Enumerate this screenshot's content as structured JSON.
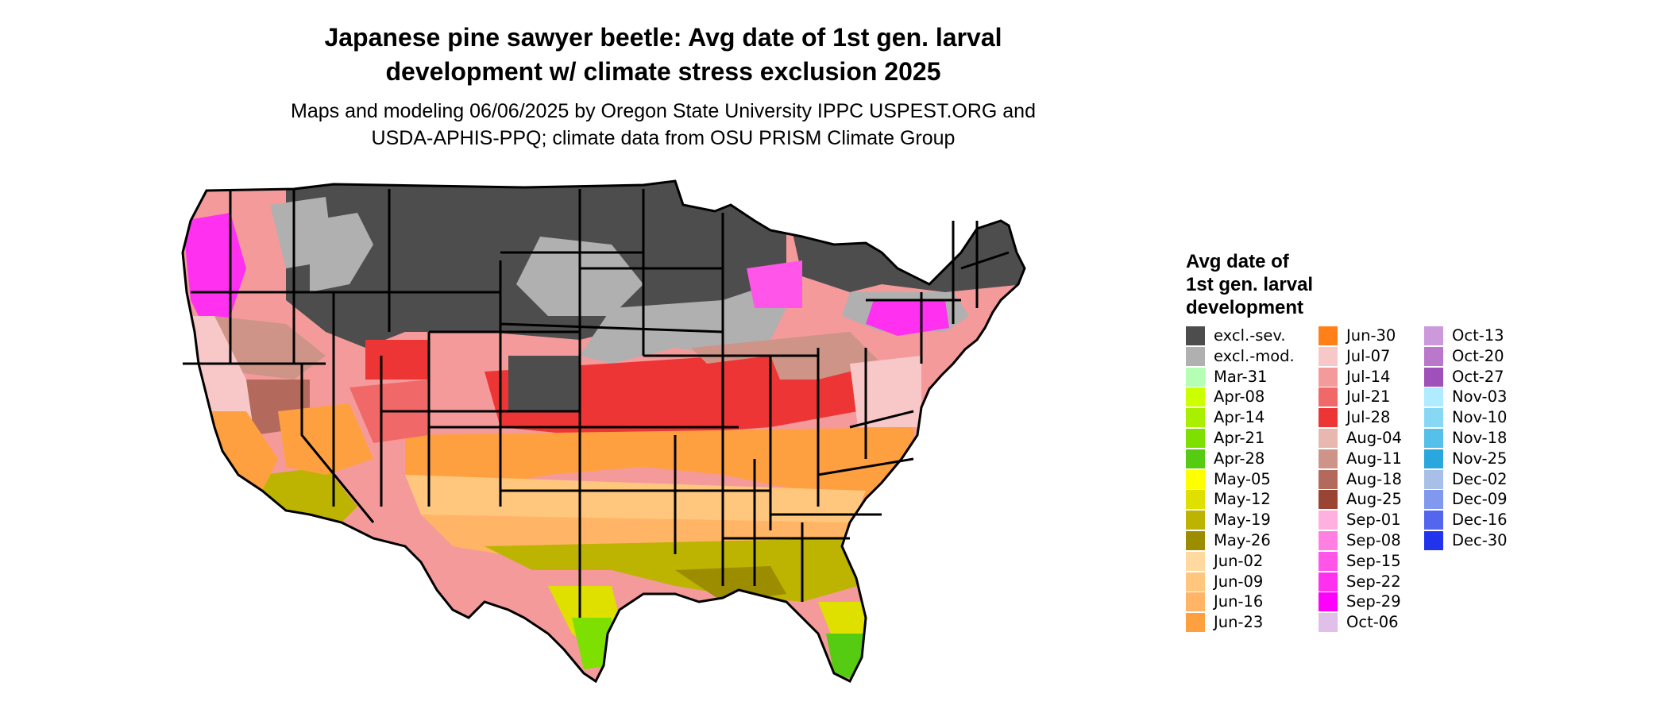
{
  "title_line1": "Japanese pine sawyer beetle: Avg date of 1st gen. larval",
  "title_line2": "development w/ climate stress exclusion 2025",
  "subtitle_line1": "Maps and modeling 06/06/2025 by Oregon State University IPPC USPEST.ORG and",
  "subtitle_line2": "USDA-APHIS-PPQ; climate data from OSU PRISM Climate Group",
  "legend": {
    "title_line1": "Avg date of",
    "title_line2": "1st gen. larval",
    "title_line3": "development",
    "col1": [
      {
        "label": "excl.-sev.",
        "color": "#4d4d4d"
      },
      {
        "label": "excl.-mod.",
        "color": "#b0b0b0"
      },
      {
        "label": "Mar-31",
        "color": "#b5ffb5"
      },
      {
        "label": "Apr-08",
        "color": "#ccff00"
      },
      {
        "label": "Apr-14",
        "color": "#a8f000"
      },
      {
        "label": "Apr-21",
        "color": "#7ee000"
      },
      {
        "label": "Apr-28",
        "color": "#55cc11"
      },
      {
        "label": "May-05",
        "color": "#ffff00"
      },
      {
        "label": "May-12",
        "color": "#e0e000"
      },
      {
        "label": "May-19",
        "color": "#bcb400"
      },
      {
        "label": "May-26",
        "color": "#9c8c00"
      },
      {
        "label": "Jun-02",
        "color": "#ffd9a0"
      },
      {
        "label": "Jun-09",
        "color": "#ffc77e"
      },
      {
        "label": "Jun-16",
        "color": "#ffb565"
      },
      {
        "label": "Jun-23",
        "color": "#ffa040"
      }
    ],
    "col2": [
      {
        "label": "Jun-30",
        "color": "#ff8018"
      },
      {
        "label": "Jul-07",
        "color": "#f8c8c8"
      },
      {
        "label": "Jul-14",
        "color": "#f49a9a"
      },
      {
        "label": "Jul-21",
        "color": "#f06868"
      },
      {
        "label": "Jul-28",
        "color": "#ee3535"
      },
      {
        "label": "Aug-04",
        "color": "#e8b8b0"
      },
      {
        "label": "Aug-11",
        "color": "#cf9488"
      },
      {
        "label": "Aug-18",
        "color": "#b36a5c"
      },
      {
        "label": "Aug-25",
        "color": "#9a4533"
      },
      {
        "label": "Sep-01",
        "color": "#ffb0e0"
      },
      {
        "label": "Sep-08",
        "color": "#ff80e0"
      },
      {
        "label": "Sep-15",
        "color": "#ff55e8"
      },
      {
        "label": "Sep-22",
        "color": "#ff30f0"
      },
      {
        "label": "Sep-29",
        "color": "#ff00ff"
      },
      {
        "label": "Oct-06",
        "color": "#e0c0e8"
      }
    ],
    "col3": [
      {
        "label": "Oct-13",
        "color": "#cc99dd"
      },
      {
        "label": "Oct-20",
        "color": "#bb77cc"
      },
      {
        "label": "Oct-27",
        "color": "#a050bb"
      },
      {
        "label": "Nov-03",
        "color": "#b0ecff"
      },
      {
        "label": "Nov-10",
        "color": "#88d8f5"
      },
      {
        "label": "Nov-18",
        "color": "#55c0ea"
      },
      {
        "label": "Nov-25",
        "color": "#2aa8dd"
      },
      {
        "label": "Dec-02",
        "color": "#a8c0e8"
      },
      {
        "label": "Dec-09",
        "color": "#8099ee"
      },
      {
        "label": "Dec-16",
        "color": "#5566ee"
      },
      {
        "label": "Dec-30",
        "color": "#2233ee"
      }
    ]
  }
}
